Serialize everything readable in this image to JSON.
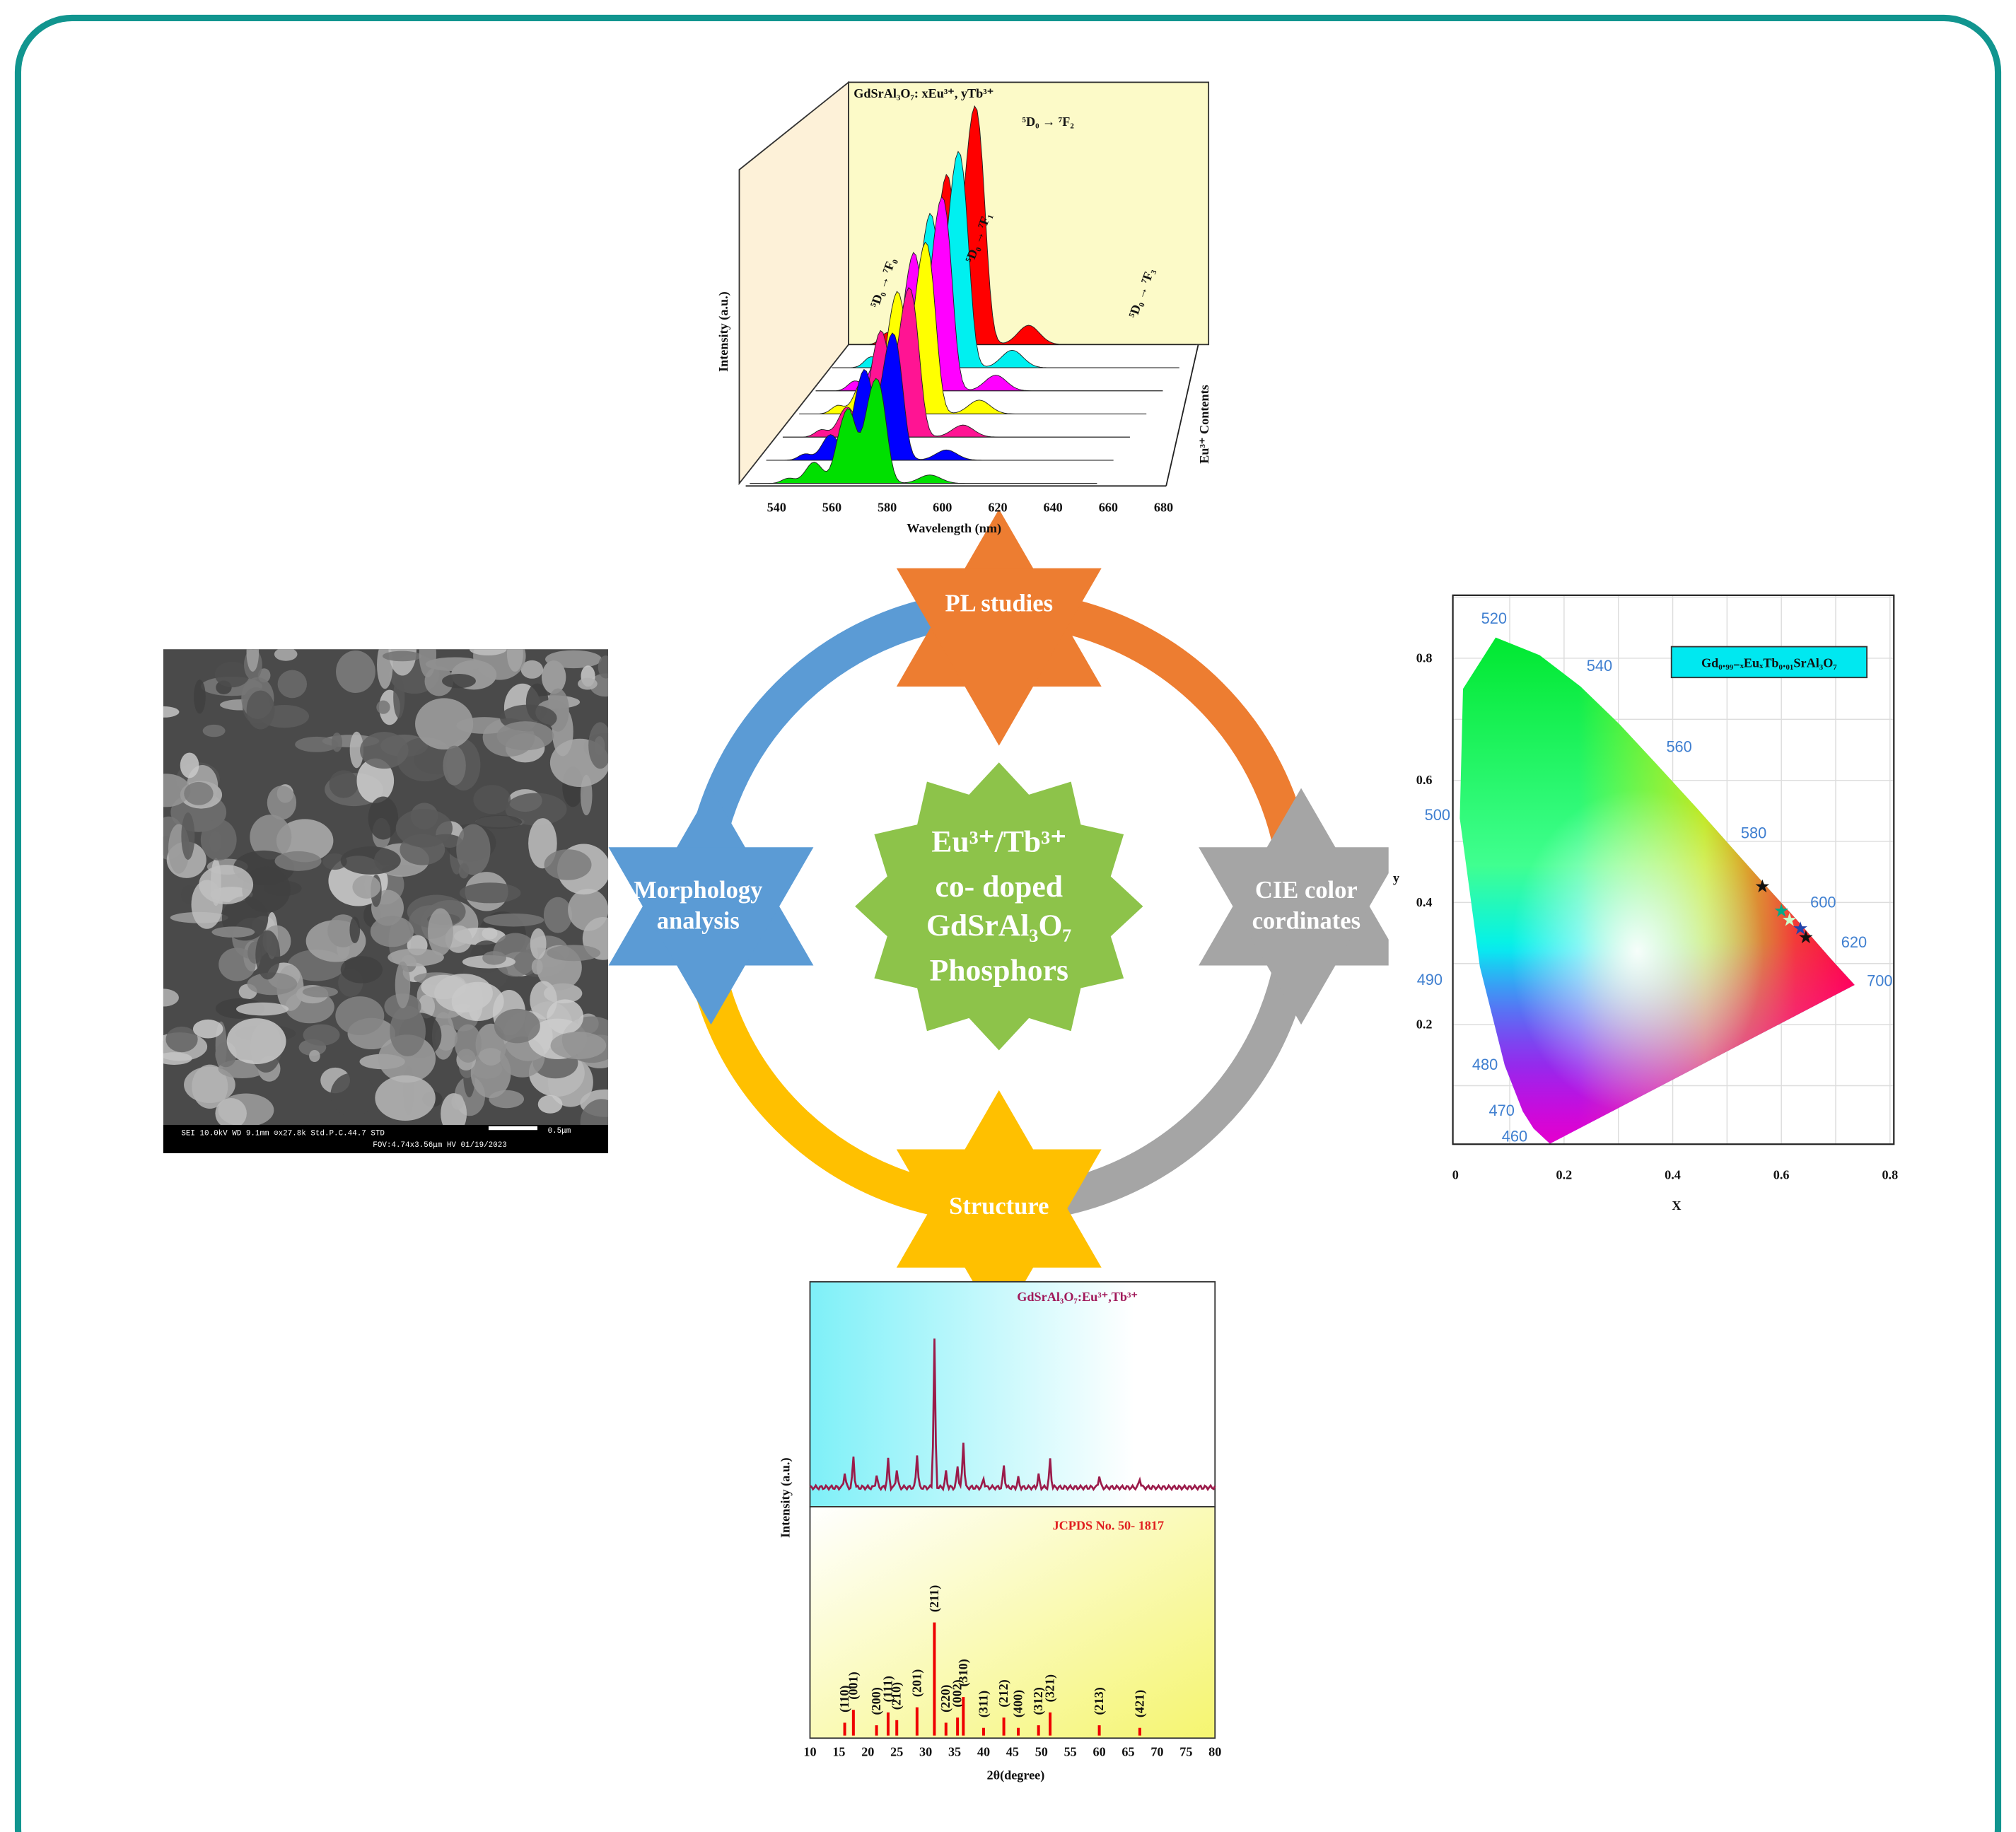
{
  "center": {
    "lines": [
      "Eu³⁺/Tb³⁺",
      "co- doped",
      "GdSrAl₃O₇",
      "Phosphors"
    ]
  },
  "nodes": [
    {
      "label": [
        "PL studies"
      ]
    },
    {
      "label": [
        "CIE color",
        "cordinates"
      ]
    },
    {
      "label": [
        "Structure"
      ]
    },
    {
      "label": [
        "Morphology",
        "analysis"
      ]
    }
  ],
  "pl_panel": {
    "title": "GdSrAl₃O₇: xEu³⁺, yTb³⁺",
    "y_label": "Intensity (a.u.)",
    "x_label": "Wavelength (nm)",
    "z_label": "Eu³⁺ Contents",
    "x_ticks": [
      "540",
      "560",
      "580",
      "600",
      "620",
      "640",
      "660",
      "680"
    ],
    "transitions": [
      "⁵D₀ → ⁷F₀",
      "⁵D₀ → ⁷F₁",
      "⁵D₀ → ⁷F₂",
      "⁵D₀ → ⁷F₃"
    ]
  },
  "sem_panel": {
    "footer": [
      "SEI 10.0kV WD 9.1mm ⊙x27.8k Std.P.C.44.7 STD",
      "FOV:4.74x3.56μm HV 01/19/2023"
    ],
    "scale_bar": "0.5μm"
  },
  "cie_panel": {
    "title": "Gd₀.₉₉₋ₓEuₓTb₀.₀₁SrAl₃O₇",
    "x_label": "X",
    "y_label": "y",
    "x_ticks": [
      "0",
      "0.2",
      "0.4",
      "0.6",
      "0.8"
    ],
    "y_ticks": [
      "0.2",
      "0.4",
      "0.6",
      "0.8"
    ],
    "wavelengths": [
      "460",
      "470",
      "480",
      "490",
      "500",
      "520",
      "540",
      "560",
      "580",
      "600",
      "620",
      "700"
    ]
  },
  "xrd_panel": {
    "title": "GdSrAl₃O₇:Eu³⁺,Tb³⁺",
    "reference": "JCPDS No. 50- 1817",
    "y_label": "Intensity (a.u.)",
    "x_label": "2θ(degree)",
    "x_ticks": [
      "10",
      "15",
      "20",
      "25",
      "30",
      "35",
      "40",
      "45",
      "50",
      "55",
      "60",
      "65",
      "70",
      "75",
      "80"
    ],
    "hkl": [
      "(110)",
      "(001)",
      "(200)",
      "(111)",
      "(210)",
      "(201)",
      "(211)",
      "(220)",
      "(002)",
      "(310)",
      "(311)",
      "(212)",
      "(400)",
      "(312)",
      "(321)",
      "(213)",
      "(421)"
    ]
  }
}
